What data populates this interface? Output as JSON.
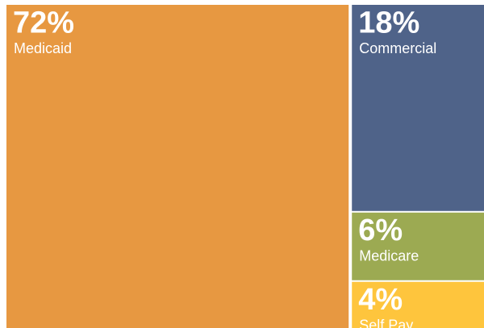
{
  "chart_data": {
    "type": "treemap",
    "categories": [
      "Medicaid",
      "Commercial",
      "Medicare",
      "Self Pay"
    ],
    "values": [
      72,
      18,
      6,
      4
    ],
    "value_labels": [
      "72%",
      "18%",
      "6%",
      "4%"
    ],
    "colors": [
      "#e79841",
      "#4f6389",
      "#9caa52",
      "#fec53d"
    ]
  }
}
